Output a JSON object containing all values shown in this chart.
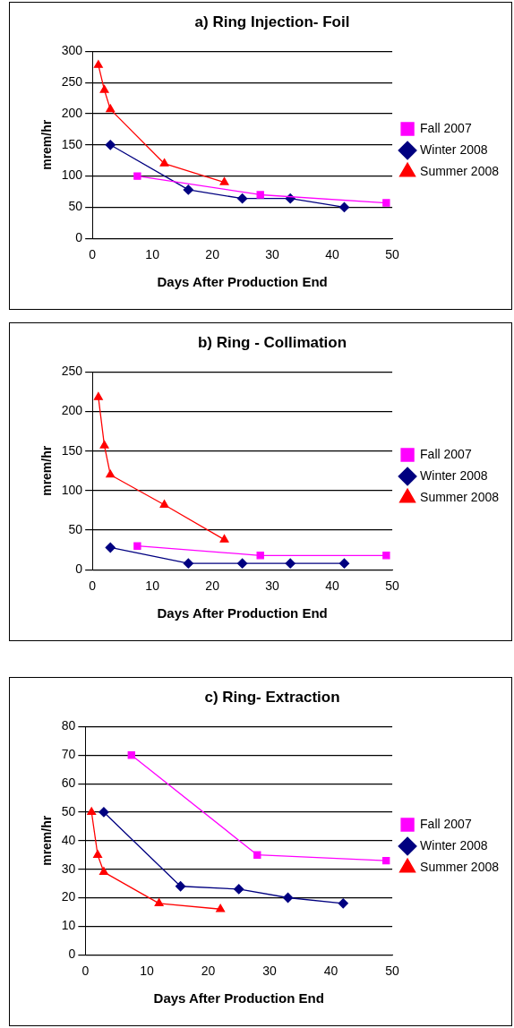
{
  "chart_data": [
    {
      "type": "line",
      "title": "a) Ring Injection- Foil",
      "xlabel": "Days After Production End",
      "ylabel": "mrem/hr",
      "xlim": [
        0,
        50
      ],
      "xticks": [
        0,
        10,
        20,
        30,
        40,
        50
      ],
      "ylim": [
        0,
        300
      ],
      "yticks": [
        0,
        50,
        100,
        150,
        200,
        250,
        300
      ],
      "grid": "y",
      "legend": "right",
      "line_style": "solid",
      "series": [
        {
          "name": "Fall 2007",
          "color": "#ff00ff",
          "marker": "square",
          "x": [
            7.5,
            28,
            49
          ],
          "values": [
            100,
            70,
            57
          ]
        },
        {
          "name": "Winter 2008",
          "color": "#000080",
          "marker": "diamond",
          "x": [
            3,
            16,
            25,
            33,
            42
          ],
          "values": [
            150,
            78,
            64,
            64,
            50
          ]
        },
        {
          "name": "Summer 2008",
          "color": "#ff0000",
          "marker": "triangle",
          "x": [
            1,
            2,
            3,
            12,
            22
          ],
          "values": [
            278,
            238,
            207,
            120,
            90
          ]
        }
      ]
    },
    {
      "type": "line",
      "title": "b) Ring - Collimation",
      "xlabel": "Days After Production End",
      "ylabel": "mrem/hr",
      "xlim": [
        0,
        50
      ],
      "xticks": [
        0,
        10,
        20,
        30,
        40,
        50
      ],
      "ylim": [
        0,
        250
      ],
      "yticks": [
        0,
        50,
        100,
        150,
        200,
        250
      ],
      "grid": "y",
      "legend": "right",
      "line_style": "solid",
      "series": [
        {
          "name": "Fall 2007",
          "color": "#ff00ff",
          "marker": "square",
          "x": [
            7.5,
            28,
            49
          ],
          "values": [
            30,
            18,
            18
          ]
        },
        {
          "name": "Winter 2008",
          "color": "#000080",
          "marker": "diamond",
          "x": [
            3,
            16,
            25,
            33,
            42
          ],
          "values": [
            28,
            8,
            8,
            8,
            8
          ]
        },
        {
          "name": "Summer 2008",
          "color": "#ff0000",
          "marker": "triangle",
          "x": [
            1,
            2,
            3,
            12,
            22
          ],
          "values": [
            218,
            157,
            120,
            82,
            38
          ]
        }
      ]
    },
    {
      "type": "line",
      "title": "c) Ring- Extraction",
      "xlabel": "Days After Production End",
      "ylabel": "mrem/hr",
      "xlim": [
        0,
        50
      ],
      "xticks": [
        0,
        10,
        20,
        30,
        40,
        50
      ],
      "ylim": [
        0,
        80
      ],
      "yticks": [
        0,
        10,
        20,
        30,
        40,
        50,
        60,
        70,
        80
      ],
      "grid": "y",
      "legend": "right",
      "line_style": "solid",
      "series": [
        {
          "name": "Fall 2007",
          "color": "#ff00ff",
          "marker": "square",
          "x": [
            7.5,
            28,
            49
          ],
          "values": [
            70,
            35,
            33
          ]
        },
        {
          "name": "Winter 2008",
          "color": "#000080",
          "marker": "diamond",
          "x": [
            3,
            15.5,
            25,
            33,
            42
          ],
          "values": [
            50,
            24,
            23,
            20,
            18
          ]
        },
        {
          "name": "Summer 2008",
          "color": "#ff0000",
          "marker": "triangle",
          "x": [
            1,
            2,
            3,
            12,
            22
          ],
          "values": [
            50,
            35,
            29,
            18,
            16
          ]
        }
      ]
    }
  ]
}
